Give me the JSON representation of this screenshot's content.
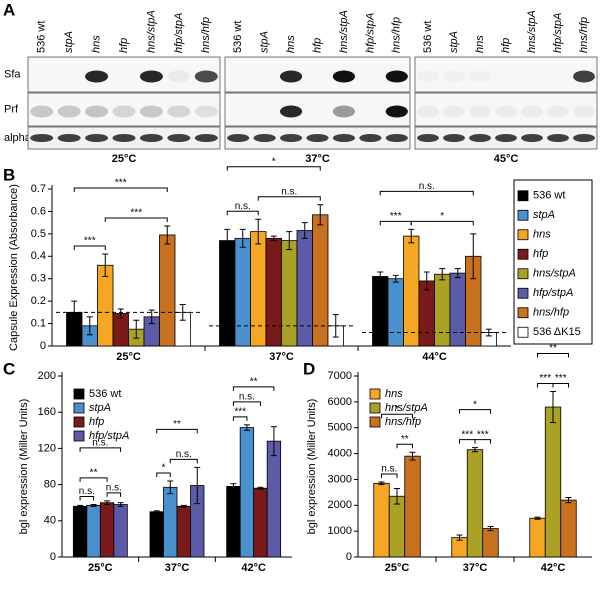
{
  "blot": {
    "panel": "A",
    "lanes": [
      {
        "label": "536 wt",
        "italic": false
      },
      {
        "label": "stpA",
        "italic": true
      },
      {
        "label": "hns",
        "italic": true
      },
      {
        "label": "hfp",
        "italic": true
      },
      {
        "label": "hns/stpA",
        "italic": true
      },
      {
        "label": "hfp/stpA",
        "italic": true
      },
      {
        "label": "hns/hfp",
        "italic": true
      }
    ],
    "rows": [
      "Sfa",
      "Prf",
      "alpha"
    ],
    "temperatures": [
      "25°C",
      "37°C",
      "45°C"
    ]
  },
  "chart_data": [
    {
      "panel": "B",
      "type": "bar",
      "ylabel": "Capsule Expression (Absorbance)",
      "categories": [
        "25°C",
        "37°C",
        "44°C"
      ],
      "ylim": [
        0,
        0.7
      ],
      "yticks": [
        0,
        0.1,
        0.2,
        0.3,
        0.4,
        0.5,
        0.6,
        0.7
      ],
      "legend": "outside-right",
      "dashed_level_series": 7,
      "series": [
        {
          "name": "536 wt",
          "italic": false,
          "color": "#000000",
          "values": [
            0.15,
            0.47,
            0.31
          ],
          "errors": [
            0.05,
            0.05,
            0.02
          ]
        },
        {
          "name": "stpA",
          "italic": true,
          "color": "#4a90cf",
          "values": [
            0.09,
            0.48,
            0.3
          ],
          "errors": [
            0.04,
            0.04,
            0.015
          ]
        },
        {
          "name": "hns",
          "italic": true,
          "color": "#f5a623",
          "values": [
            0.36,
            0.51,
            0.49
          ],
          "errors": [
            0.05,
            0.055,
            0.03
          ]
        },
        {
          "name": "hfp",
          "italic": true,
          "color": "#7a1a1a",
          "values": [
            0.145,
            0.48,
            0.29
          ],
          "errors": [
            0.02,
            0.01,
            0.04
          ]
        },
        {
          "name": "hns/stpA",
          "italic": true,
          "color": "#a9a225",
          "values": [
            0.075,
            0.47,
            0.32
          ],
          "errors": [
            0.04,
            0.04,
            0.025
          ]
        },
        {
          "name": "hfp/stpA",
          "italic": true,
          "color": "#5b5ba8",
          "values": [
            0.13,
            0.515,
            0.325
          ],
          "errors": [
            0.03,
            0.035,
            0.02
          ]
        },
        {
          "name": "hns/hfp",
          "italic": true,
          "color": "#c8711f",
          "values": [
            0.495,
            0.585,
            0.4
          ],
          "errors": [
            0.04,
            0.045,
            0.1
          ]
        },
        {
          "name": "536 ΔK15",
          "italic": false,
          "color": "#ffffff",
          "values": [
            0.15,
            0.09,
            0.06
          ],
          "errors": [
            0.035,
            0.05,
            0.015
          ]
        }
      ],
      "annotations": [
        {
          "text": "***",
          "category": 0,
          "from": 0,
          "to": 2
        },
        {
          "text": "***",
          "category": 0,
          "from": 2,
          "to": 6
        },
        {
          "text": "***",
          "category": 0,
          "from": 0,
          "to": 6
        },
        {
          "text": "n.s.",
          "category": 1,
          "from": 0,
          "to": 2
        },
        {
          "text": "n.s.",
          "category": 1,
          "from": 2,
          "to": 6
        },
        {
          "text": "*",
          "category": 1,
          "from": 0,
          "to": 6
        },
        {
          "text": "***",
          "category": 2,
          "from": 0,
          "to": 2
        },
        {
          "text": "*",
          "category": 2,
          "from": 2,
          "to": 6
        },
        {
          "text": "n.s.",
          "category": 2,
          "from": 0,
          "to": 6
        }
      ]
    },
    {
      "panel": "C",
      "type": "bar",
      "ylabel": "bgl expression (Miller Units)",
      "categories": [
        "25°C",
        "37°C",
        "42°C"
      ],
      "ylim": [
        0,
        200
      ],
      "yticks": [
        0,
        40,
        80,
        120,
        160,
        200
      ],
      "legend": "upper-left",
      "series": [
        {
          "name": "536 wt",
          "italic": false,
          "color": "#000000",
          "values": [
            56,
            50,
            78
          ],
          "errors": [
            1,
            1,
            3
          ]
        },
        {
          "name": "stpA",
          "italic": true,
          "color": "#4a90cf",
          "values": [
            57,
            77,
            143
          ],
          "errors": [
            1,
            7,
            3
          ]
        },
        {
          "name": "hfp",
          "italic": true,
          "color": "#7a1a1a",
          "values": [
            60,
            56,
            76
          ],
          "errors": [
            2,
            1,
            1
          ]
        },
        {
          "name": "hfp/stpA",
          "italic": true,
          "color": "#5b5ba8",
          "values": [
            58,
            79,
            128
          ],
          "errors": [
            2,
            20,
            16
          ]
        }
      ],
      "annotations": [
        {
          "text": "n.s.",
          "category": 0,
          "from": 0,
          "to": 1
        },
        {
          "text": "**",
          "category": 0,
          "from": 0,
          "to": 2
        },
        {
          "text": "n.s.",
          "category": 0,
          "from": 2,
          "to": 3
        },
        {
          "text": "n.s.",
          "category": 0,
          "from": 0,
          "to": 3
        },
        {
          "text": "*",
          "category": 1,
          "from": 0,
          "to": 1
        },
        {
          "text": "n.s.",
          "category": 1,
          "from": 1,
          "to": 3
        },
        {
          "text": "**",
          "category": 1,
          "from": 0,
          "to": 3
        },
        {
          "text": "***",
          "category": 2,
          "from": 0,
          "to": 1
        },
        {
          "text": "n.s.",
          "category": 2,
          "from": 0,
          "to": 2
        },
        {
          "text": "**",
          "category": 2,
          "from": 0,
          "to": 3
        }
      ]
    },
    {
      "panel": "D",
      "type": "bar",
      "ylabel": "bgl expression (Miller Units)",
      "categories": [
        "25°C",
        "37°C",
        "42°C"
      ],
      "ylim": [
        0,
        7000
      ],
      "yticks": [
        0,
        1000,
        2000,
        3000,
        4000,
        5000,
        6000,
        7000
      ],
      "legend": "upper-left",
      "series": [
        {
          "name": "hns",
          "italic": true,
          "color": "#f5a623",
          "values": [
            2850,
            750,
            1500
          ],
          "errors": [
            50,
            100,
            40
          ]
        },
        {
          "name": "hns/stpA",
          "italic": true,
          "color": "#a9a225",
          "values": [
            2350,
            4150,
            5800
          ],
          "errors": [
            300,
            80,
            600
          ]
        },
        {
          "name": "hns/hfp",
          "italic": true,
          "color": "#c8711f",
          "values": [
            3900,
            1100,
            2200
          ],
          "errors": [
            150,
            80,
            100
          ]
        }
      ],
      "annotations": [
        {
          "text": "n.s.",
          "category": 0,
          "from": 0,
          "to": 1
        },
        {
          "text": "**",
          "category": 0,
          "from": 1,
          "to": 2
        },
        {
          "text": "*",
          "category": 0,
          "from": 0,
          "to": 2
        },
        {
          "text": "***",
          "category": 1,
          "from": 0,
          "to": 1
        },
        {
          "text": "***",
          "category": 1,
          "from": 1,
          "to": 2
        },
        {
          "text": "*",
          "category": 1,
          "from": 0,
          "to": 2
        },
        {
          "text": "***",
          "category": 2,
          "from": 0,
          "to": 1
        },
        {
          "text": "***",
          "category": 2,
          "from": 1,
          "to": 2
        },
        {
          "text": "**",
          "category": 2,
          "from": 0,
          "to": 2
        }
      ]
    }
  ]
}
